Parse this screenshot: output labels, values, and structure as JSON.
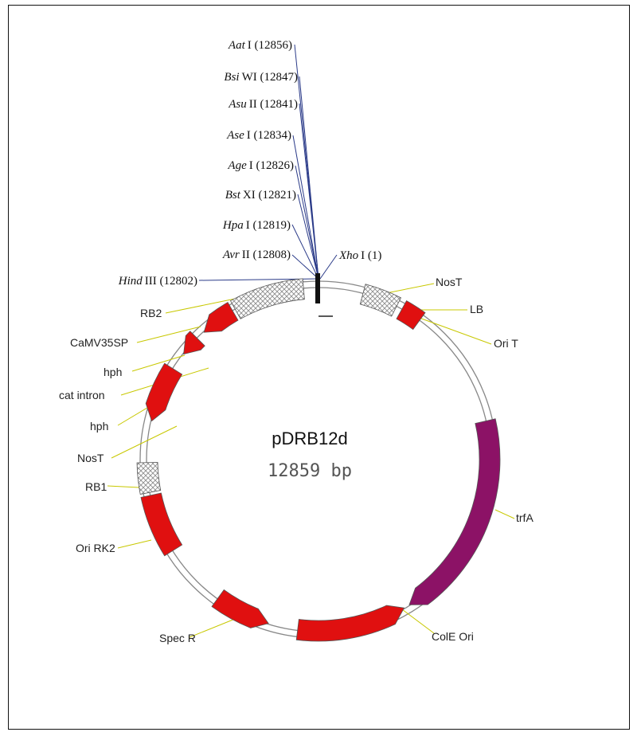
{
  "plasmid": {
    "name": "pDRB12d",
    "size_label": "12859 bp",
    "backbone_color": "#888888",
    "feature_color": "#e01010",
    "trfA_color": "#8c1266",
    "hatch_color": "#9a9a9a",
    "leader_color": "#c8c800"
  },
  "restriction_sites": [
    {
      "enzyme": "Aat",
      "suffix": "I (12856)"
    },
    {
      "enzyme": "Bsi",
      "suffix": "WI (12847)"
    },
    {
      "enzyme": "Asu",
      "suffix": "II (12841)"
    },
    {
      "enzyme": "Ase",
      "suffix": "I (12834)"
    },
    {
      "enzyme": "Age",
      "suffix": "I (12826)"
    },
    {
      "enzyme": "Bst",
      "suffix": "XI (12821)"
    },
    {
      "enzyme": "Hpa",
      "suffix": "I (12819)"
    },
    {
      "enzyme": "Avr",
      "suffix": "II (12808)"
    },
    {
      "enzyme": "Hind",
      "suffix": "III (12802)"
    },
    {
      "enzyme": "Xho",
      "suffix": "I (1)"
    }
  ],
  "features": [
    {
      "label": "NosT"
    },
    {
      "label": "LB"
    },
    {
      "label": "Ori T"
    },
    {
      "label": "trfA"
    },
    {
      "label": "ColE Ori"
    },
    {
      "label": "Spec R"
    },
    {
      "label": "Ori RK2"
    },
    {
      "label": "RB1"
    },
    {
      "label": "NosT"
    },
    {
      "label": "hph"
    },
    {
      "label": "cat intron"
    },
    {
      "label": "hph"
    },
    {
      "label": "CaMV35SP"
    },
    {
      "label": "RB2"
    }
  ]
}
